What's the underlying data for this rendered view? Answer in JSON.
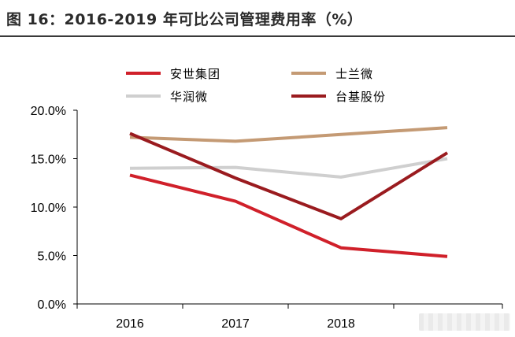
{
  "title": "图 16：2016-2019 年可比公司管理费用率（%）",
  "chart_data": {
    "type": "line",
    "categories": [
      "2016",
      "2017",
      "2018",
      ""
    ],
    "x_tick_labels": [
      "2016",
      "2017",
      "2018"
    ],
    "y_tick_labels": [
      "0.0%",
      "5.0%",
      "10.0%",
      "15.0%",
      "20.0%"
    ],
    "ylim": [
      0,
      20
    ],
    "ylabel": "",
    "xlabel": "",
    "grid": false,
    "legend_position": "top",
    "series": [
      {
        "name": "安世集团",
        "color": "#d0202a",
        "values": [
          13.3,
          10.6,
          5.8,
          4.9
        ]
      },
      {
        "name": "士兰微",
        "color": "#c49a74",
        "values": [
          17.2,
          16.8,
          17.5,
          18.2
        ]
      },
      {
        "name": "华润微",
        "color": "#cfcfcf",
        "values": [
          14.0,
          14.1,
          13.1,
          15.0
        ]
      },
      {
        "name": "台基股份",
        "color": "#9a1b1f",
        "values": [
          17.6,
          13.0,
          8.8,
          15.6
        ]
      }
    ]
  }
}
